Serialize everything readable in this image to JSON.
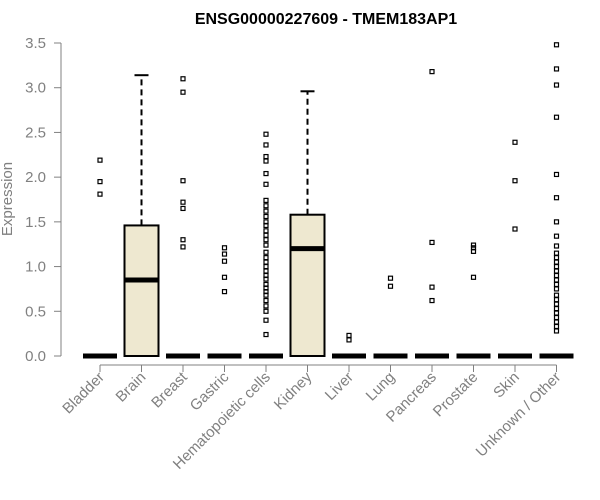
{
  "chart_data": {
    "type": "boxplot",
    "title": "ENSG00000227609 - TMEM183AP1",
    "xlabel": "",
    "ylabel": "Expression",
    "ylim": [
      0,
      3.5
    ],
    "yticks": [
      "0.0",
      "0.5",
      "1.0",
      "1.5",
      "2.0",
      "2.5",
      "3.0",
      "3.5"
    ],
    "grid": false,
    "colors": {
      "box_fill": "#EEE8D0",
      "stroke": "#000000",
      "axis": "#808080",
      "title": "#000000"
    },
    "categories": [
      "Bladder",
      "Brain",
      "Breast",
      "Gastric",
      "Hematopoietic cells",
      "Kidney",
      "Liver",
      "Lung",
      "Pancreas",
      "Prostate",
      "Skin",
      "Unknown / Other"
    ],
    "boxes": [
      {
        "category": "Bladder",
        "q1": 0,
        "median": 0,
        "q3": 0,
        "whisker_low": 0,
        "whisker_high": 0,
        "outliers": [
          1.81,
          1.95,
          2.19
        ]
      },
      {
        "category": "Brain",
        "q1": 0,
        "median": 0.85,
        "q3": 1.46,
        "whisker_low": 0,
        "whisker_high": 3.14,
        "outliers": []
      },
      {
        "category": "Breast",
        "q1": 0,
        "median": 0,
        "q3": 0,
        "whisker_low": 0,
        "whisker_high": 0,
        "outliers": [
          1.22,
          1.3,
          1.65,
          1.72,
          1.96,
          2.95,
          3.1
        ]
      },
      {
        "category": "Gastric",
        "q1": 0,
        "median": 0,
        "q3": 0,
        "whisker_low": 0,
        "whisker_high": 0,
        "outliers": [
          0.72,
          0.88,
          1.06,
          1.14,
          1.21
        ]
      },
      {
        "category": "Hematopoietic cells",
        "q1": 0,
        "median": 0,
        "q3": 0,
        "whisker_low": 0,
        "whisker_high": 0,
        "outliers": [
          0.24,
          0.4,
          0.5,
          0.56,
          0.62,
          0.68,
          0.72,
          0.76,
          0.8,
          0.86,
          0.9,
          0.95,
          1.0,
          1.05,
          1.1,
          1.16,
          1.24,
          1.3,
          1.35,
          1.4,
          1.46,
          1.5,
          1.56,
          1.62,
          1.68,
          1.74,
          1.92,
          2.04,
          2.18,
          2.23,
          2.36,
          2.48
        ]
      },
      {
        "category": "Kidney",
        "q1": 0,
        "median": 1.2,
        "q3": 1.58,
        "whisker_low": 0,
        "whisker_high": 2.96,
        "outliers": []
      },
      {
        "category": "Liver",
        "q1": 0,
        "median": 0,
        "q3": 0,
        "whisker_low": 0,
        "whisker_high": 0,
        "outliers": [
          0.18,
          0.23
        ]
      },
      {
        "category": "Lung",
        "q1": 0,
        "median": 0,
        "q3": 0,
        "whisker_low": 0,
        "whisker_high": 0,
        "outliers": [
          0.78,
          0.87
        ]
      },
      {
        "category": "Pancreas",
        "q1": 0,
        "median": 0,
        "q3": 0,
        "whisker_low": 0,
        "whisker_high": 0,
        "outliers": [
          0.62,
          0.77,
          1.27,
          3.18
        ]
      },
      {
        "category": "Prostate",
        "q1": 0,
        "median": 0,
        "q3": 0,
        "whisker_low": 0,
        "whisker_high": 0,
        "outliers": [
          0.88,
          1.17,
          1.21,
          1.24
        ]
      },
      {
        "category": "Skin",
        "q1": 0,
        "median": 0,
        "q3": 0,
        "whisker_low": 0,
        "whisker_high": 0,
        "outliers": [
          1.42,
          1.96,
          2.39
        ]
      },
      {
        "category": "Unknown / Other",
        "q1": 0,
        "median": 0,
        "q3": 0,
        "whisker_low": 0,
        "whisker_high": 0,
        "outliers": [
          0.28,
          0.33,
          0.38,
          0.43,
          0.48,
          0.53,
          0.58,
          0.63,
          0.68,
          0.75,
          0.8,
          0.85,
          0.9,
          0.95,
          1.0,
          1.05,
          1.1,
          1.15,
          1.23,
          1.34,
          1.5,
          1.77,
          2.03,
          2.67,
          3.03,
          3.21,
          3.48
        ]
      }
    ]
  }
}
